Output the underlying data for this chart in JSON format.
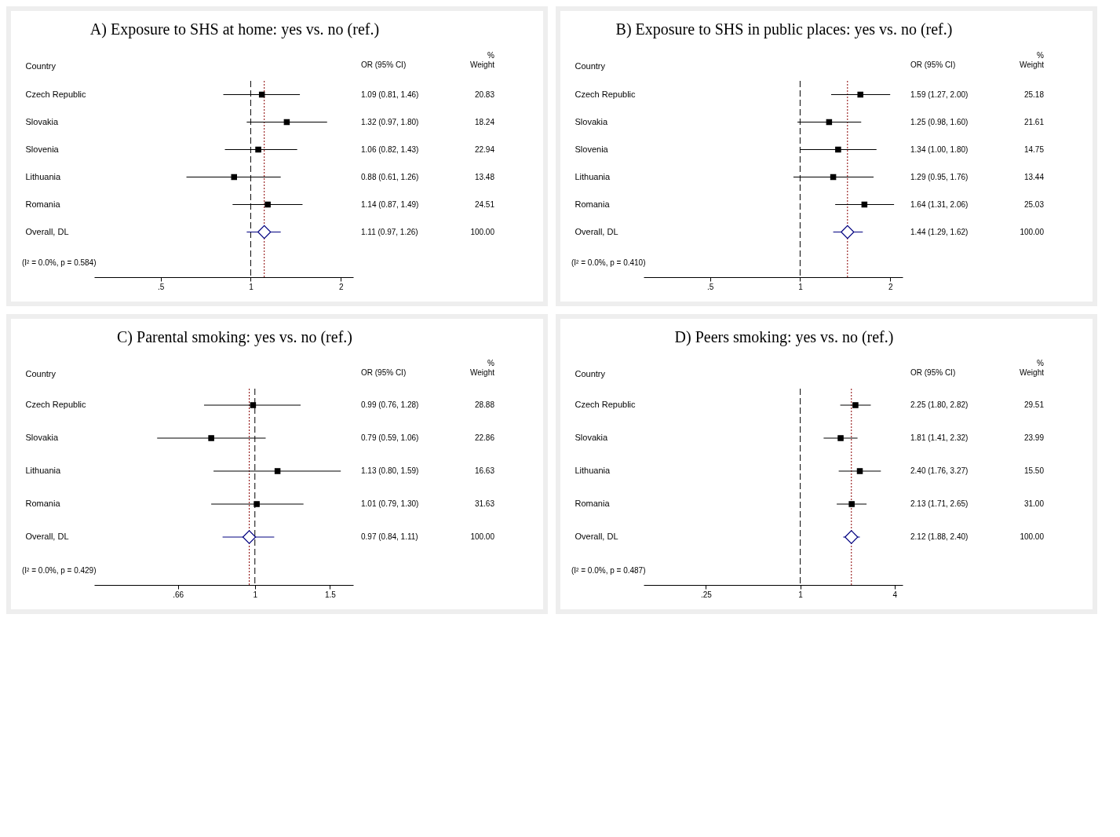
{
  "chart_data": [
    {
      "type": "scatter",
      "orientation": "horizontal",
      "title": "A)    Exposure to SHS at home: yes vs. no (ref.)",
      "ylabel": "Country",
      "categories": [
        "Czech Republic",
        "Slovakia",
        "Slovenia",
        "Lithuania",
        "Romania",
        "Overall, DL"
      ],
      "log": "x",
      "xlim": [
        0.3,
        2.2
      ],
      "xticks": [
        {
          "value": 0.5,
          "label": ".5"
        },
        1,
        2
      ],
      "series": [
        {
          "color": "#000000",
          "marker": "square",
          "values": [
            1.09,
            1.32,
            1.06,
            0.88,
            1.14,
            null
          ],
          "errors": [
            [
              0.81,
              1.46
            ],
            [
              0.97,
              1.8
            ],
            [
              0.82,
              1.43
            ],
            [
              0.61,
              1.26
            ],
            [
              0.87,
              1.49
            ],
            null
          ],
          "value_labels": [
            "1.09 (0.81, 1.46)",
            "1.32 (0.97, 1.80)",
            "1.06 (0.82, 1.43)",
            "0.88 (0.61, 1.26)",
            "1.14 (0.87, 1.49)",
            null
          ]
        },
        {
          "color": "#000080",
          "marker": "diamond",
          "values": [
            null,
            null,
            null,
            null,
            null,
            1.11
          ],
          "errors": [
            null,
            null,
            null,
            null,
            null,
            [
              0.97,
              1.26
            ]
          ]
        }
      ],
      "ref_lines": [
        {
          "axis": "x",
          "value": 1,
          "color": "#000000",
          "line_style": "dashed"
        },
        {
          "axis": "x",
          "value": 1.11,
          "color": "#8b0000",
          "line_style": "dotted"
        }
      ],
      "annotations": [
        "OR (95% CI)",
        "(I² = 0.0%, p = 0.584)",
        "1.11 (0.97, 1.26)"
      ]
    },
    {
      "type": "other",
      "annotations": [
        "%",
        "Weight",
        "20.83",
        "18.24",
        "22.94",
        "13.48",
        "24.51",
        "100.00"
      ]
    },
    {
      "type": "scatter",
      "orientation": "horizontal",
      "title": "B)    Exposure to SHS in public places:  yes vs. no (ref.)",
      "ylabel": "Country",
      "categories": [
        "Czech Republic",
        "Slovakia",
        "Slovenia",
        "Lithuania",
        "Romania",
        "Overall, DL"
      ],
      "log": "x",
      "xlim": [
        0.3,
        2.2
      ],
      "xticks": [
        {
          "value": 0.5,
          "label": ".5"
        },
        1,
        2
      ],
      "series": [
        {
          "color": "#000000",
          "marker": "square",
          "values": [
            1.59,
            1.25,
            1.34,
            1.29,
            1.64,
            null
          ],
          "errors": [
            [
              1.27,
              2.0
            ],
            [
              0.98,
              1.6
            ],
            [
              1.0,
              1.8
            ],
            [
              0.95,
              1.76
            ],
            [
              1.31,
              2.06
            ],
            null
          ],
          "value_labels": [
            "1.59 (1.27, 2.00)",
            "1.25 (0.98, 1.60)",
            "1.34 (1.00, 1.80)",
            "1.29 (0.95, 1.76)",
            "1.64 (1.31, 2.06)",
            null
          ]
        },
        {
          "color": "#000080",
          "marker": "diamond",
          "values": [
            null,
            null,
            null,
            null,
            null,
            1.44
          ],
          "errors": [
            null,
            null,
            null,
            null,
            null,
            [
              1.29,
              1.62
            ]
          ]
        }
      ],
      "ref_lines": [
        {
          "axis": "x",
          "value": 1,
          "color": "#000000",
          "line_style": "dashed"
        },
        {
          "axis": "x",
          "value": 1.44,
          "color": "#8b0000",
          "line_style": "dotted"
        }
      ],
      "annotations": [
        "OR (95% CI)",
        "(I² = 0.0%, p = 0.410)",
        "1.44 (1.29, 1.62)"
      ]
    },
    {
      "type": "other",
      "annotations": [
        "%",
        "Weight",
        "25.18",
        "21.61",
        "14.75",
        "13.44",
        "25.03",
        "100.00"
      ]
    },
    {
      "type": "scatter",
      "orientation": "horizontal",
      "title": "C)    Parental smoking: yes vs. no (ref.)",
      "ylabel": "Country",
      "categories": [
        "Czech Republic",
        "Slovakia",
        "Lithuania",
        "Romania",
        "Overall, DL"
      ],
      "log": "x",
      "xlim": [
        0.42,
        1.7
      ],
      "xticks": [
        {
          "value": 0.66,
          "label": ".66"
        },
        1,
        1.5
      ],
      "series": [
        {
          "color": "#000000",
          "marker": "square",
          "values": [
            0.99,
            0.79,
            1.13,
            1.01,
            null
          ],
          "errors": [
            [
              0.76,
              1.28
            ],
            [
              0.59,
              1.06
            ],
            [
              0.8,
              1.59
            ],
            [
              0.79,
              1.3
            ],
            null
          ],
          "value_labels": [
            "0.99 (0.76, 1.28)",
            "0.79 (0.59, 1.06)",
            "1.13 (0.80, 1.59)",
            "1.01 (0.79, 1.30)",
            null
          ]
        },
        {
          "color": "#000080",
          "marker": "diamond",
          "values": [
            null,
            null,
            null,
            null,
            0.97
          ],
          "errors": [
            null,
            null,
            null,
            null,
            [
              0.84,
              1.11
            ]
          ]
        }
      ],
      "ref_lines": [
        {
          "axis": "x",
          "value": 1,
          "color": "#000000",
          "line_style": "dashed"
        },
        {
          "axis": "x",
          "value": 0.97,
          "color": "#8b0000",
          "line_style": "dotted"
        }
      ],
      "annotations": [
        "OR (95% CI)",
        "(I² = 0.0%, p = 0.429)",
        "0.97 (0.84, 1.11)"
      ]
    },
    {
      "type": "other",
      "annotations": [
        "%",
        "Weight",
        "28.88",
        "22.86",
        "16.63",
        "31.63",
        "100.00"
      ]
    },
    {
      "type": "scatter",
      "orientation": "horizontal",
      "title": "D)    Peers smoking: yes vs. no (ref.)",
      "ylabel": "Country",
      "categories": [
        "Czech Republic",
        "Slovakia",
        "Lithuania",
        "Romania",
        "Overall, DL"
      ],
      "log": "x",
      "xlim": [
        0.1,
        4.5
      ],
      "xticks": [
        {
          "value": 0.25,
          "label": ".25"
        },
        1,
        4
      ],
      "series": [
        {
          "color": "#000000",
          "marker": "square",
          "values": [
            2.25,
            1.81,
            2.4,
            2.13,
            null
          ],
          "errors": [
            [
              1.8,
              2.82
            ],
            [
              1.41,
              2.32
            ],
            [
              1.76,
              3.27
            ],
            [
              1.71,
              2.65
            ],
            null
          ],
          "value_labels": [
            "2.25 (1.80, 2.82)",
            "1.81 (1.41, 2.32)",
            "2.40 (1.76, 3.27)",
            "2.13 (1.71, 2.65)",
            null
          ]
        },
        {
          "color": "#000080",
          "marker": "diamond",
          "values": [
            null,
            null,
            null,
            null,
            2.12
          ],
          "errors": [
            null,
            null,
            null,
            null,
            [
              1.88,
              2.4
            ]
          ]
        }
      ],
      "ref_lines": [
        {
          "axis": "x",
          "value": 1,
          "color": "#000000",
          "line_style": "dashed"
        },
        {
          "axis": "x",
          "value": 2.12,
          "color": "#8b0000",
          "line_style": "dotted"
        }
      ],
      "annotations": [
        "OR (95% CI)",
        "(I² = 0.0%, p = 0.487)",
        "2.12 (1.88, 2.40)"
      ]
    },
    {
      "type": "other",
      "annotations": [
        "%",
        "Weight",
        "29.51",
        "23.99",
        "15.50",
        "31.00",
        "100.00"
      ]
    }
  ]
}
